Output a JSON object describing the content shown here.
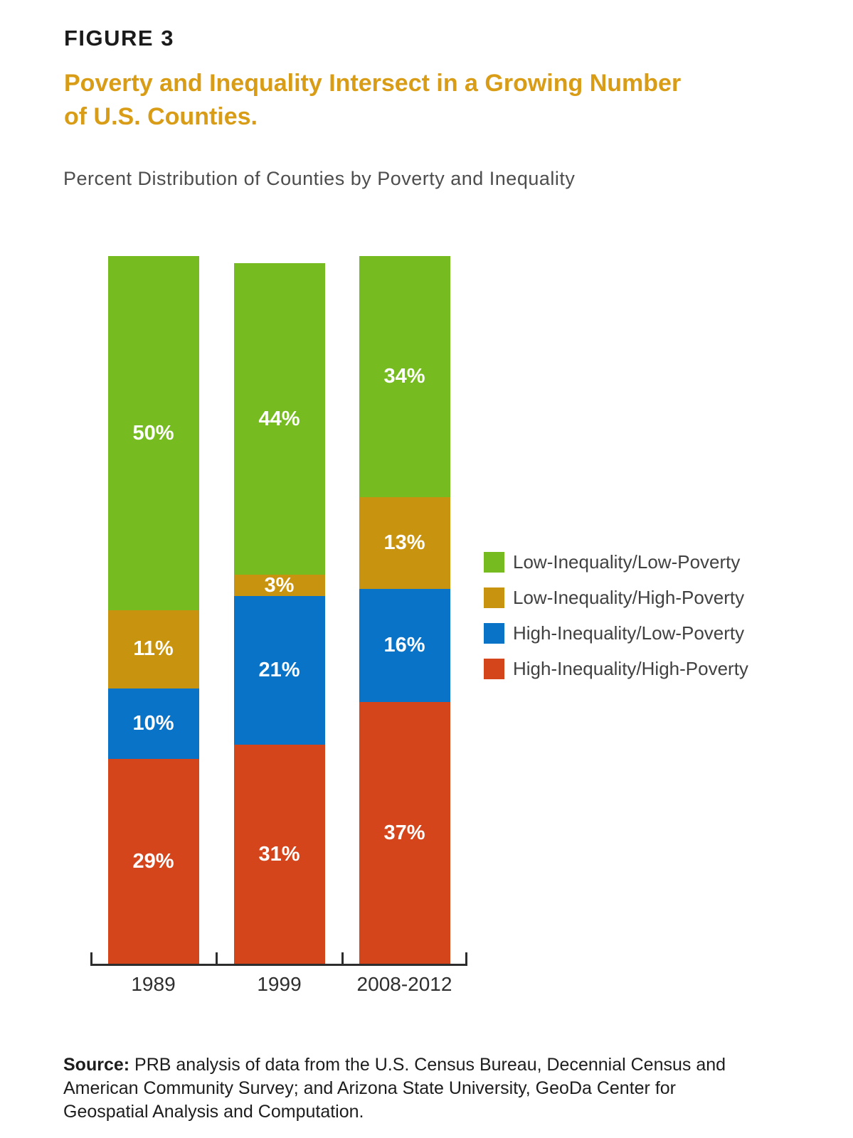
{
  "figure_label": "FIGURE 3",
  "title": {
    "line1": "Poverty and Inequality Intersect in a Growing Number",
    "line2": "of U.S. Counties."
  },
  "subtitle": "Percent Distribution of Counties by Poverty and Inequality",
  "chart_data": {
    "type": "bar",
    "stacked": true,
    "title": "Percent Distribution of Counties by Poverty and Inequality",
    "categories": [
      "1989",
      "1999",
      "2008-2012"
    ],
    "series": [
      {
        "name": "Low-Inequality/Low-Poverty",
        "color": "#76BC21",
        "values": [
          50,
          44,
          34
        ]
      },
      {
        "name": "Low-Inequality/High-Poverty",
        "color": "#C8930F",
        "values": [
          11,
          3,
          13
        ]
      },
      {
        "name": "High-Inequality/Low-Poverty",
        "color": "#0973C8",
        "values": [
          10,
          21,
          16
        ]
      },
      {
        "name": "High-Inequality/High-Poverty",
        "color": "#D4451C",
        "values": [
          29,
          31,
          37
        ]
      }
    ],
    "stack_order": "top-to-bottom",
    "value_suffix": "%",
    "ylim": [
      0,
      100
    ],
    "grid": false,
    "legend_position": "right",
    "xlabel": "",
    "ylabel": ""
  },
  "colors": {
    "title_accent": "#D89C17",
    "axis": "#2D2D2D",
    "value_label_text": "#FFFFFF"
  },
  "source": {
    "label": "Source:",
    "text": "PRB analysis of data from the U.S. Census Bureau, Decennial Census and American Community Survey; and Arizona State University, GeoDa Center for Geospatial Analysis and Computation."
  }
}
